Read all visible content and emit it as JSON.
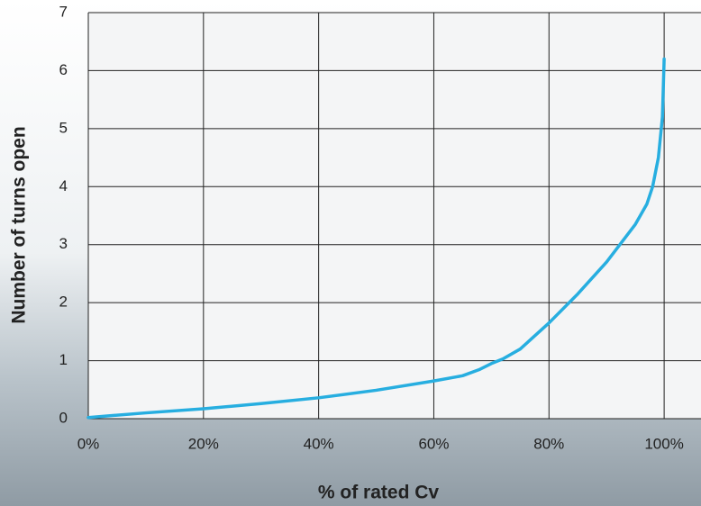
{
  "chart_data": {
    "type": "line",
    "x_label": "% of rated Cv",
    "y_label": "Number of turns open",
    "x": [
      0,
      10,
      20,
      30,
      40,
      50,
      60,
      65,
      68,
      70,
      72,
      75,
      77,
      80,
      85,
      90,
      95,
      97,
      98,
      99,
      99.7,
      100
    ],
    "series": [
      {
        "color": "#27aee0",
        "values": [
          0.02,
          0.1,
          0.17,
          0.26,
          0.36,
          0.49,
          0.65,
          0.74,
          0.85,
          0.95,
          1.03,
          1.2,
          1.38,
          1.65,
          2.15,
          2.7,
          3.35,
          3.7,
          4.0,
          4.5,
          5.2,
          6.2
        ]
      }
    ],
    "xlim": [
      0,
      106.4
    ],
    "ylim": [
      0,
      7
    ],
    "xticks": [
      {
        "value": 0,
        "label": "0%"
      },
      {
        "value": 20,
        "label": "20%"
      },
      {
        "value": 40,
        "label": "40%"
      },
      {
        "value": 60,
        "label": "60%"
      },
      {
        "value": 80,
        "label": "80%"
      },
      {
        "value": 100,
        "label": "100%"
      }
    ],
    "yticks": [
      0,
      1,
      2,
      3,
      4,
      5,
      6,
      7
    ],
    "grid": true
  }
}
